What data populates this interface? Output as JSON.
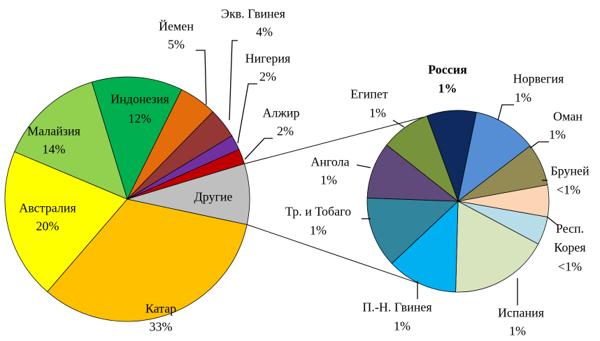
{
  "chart_data": [
    {
      "type": "pie",
      "categories": [
        "Катар",
        "Австралия",
        "Малайзия",
        "Индонезия",
        "Йемен",
        "Экв. Гвинея",
        "Нигерия",
        "Алжир",
        "Другие"
      ],
      "values": [
        33,
        20,
        14,
        12,
        5,
        4,
        2,
        2,
        8
      ],
      "value_labels": [
        "33%",
        "20%",
        "14%",
        "12%",
        "5%",
        "4%",
        "2%",
        "2%",
        null
      ],
      "colors": [
        "#FFC000",
        "#FFFF00",
        "#92D050",
        "#00B050",
        "#E46C0A",
        "#953735",
        "#7030A0",
        "#C00000",
        "#BFBFBF"
      ]
    },
    {
      "type": "pie",
      "categories": [
        "Россия",
        "Норвегия",
        "Оман",
        "Бруней",
        "Респ. Корея",
        "Испания",
        "П.-Н. Гвинея",
        "Тр. и Тобаго",
        "Ангола",
        "Египет"
      ],
      "values": [
        0.7,
        0.9,
        0.6,
        0.45,
        0.4,
        1.4,
        1.0,
        1.0,
        0.8,
        0.7
      ],
      "value_labels": [
        "1%",
        "1%",
        "1%",
        "<1%",
        "<1%",
        "1%",
        "1%",
        "1%",
        "1%",
        "1%"
      ],
      "colors": [
        "#0F2A5E",
        "#558ED5",
        "#948A54",
        "#FCD5B5",
        "#B7DEE8",
        "#D7E4BD",
        "#00B0F0",
        "#31859C",
        "#604A7B",
        "#77933C"
      ]
    }
  ]
}
